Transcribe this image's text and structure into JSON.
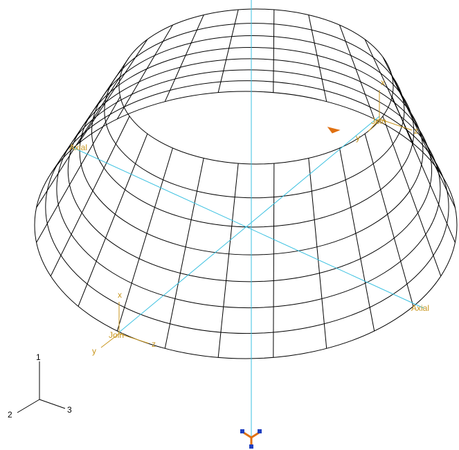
{
  "connectors": [
    {
      "name": "Join",
      "x": "x",
      "y": "y",
      "z": "z"
    },
    {
      "name": "Join",
      "x": "x",
      "y": "y",
      "z": "z"
    }
  ],
  "axial_labels": [
    "Axial",
    "Axial"
  ],
  "triad": [
    "1",
    "2",
    "3"
  ]
}
